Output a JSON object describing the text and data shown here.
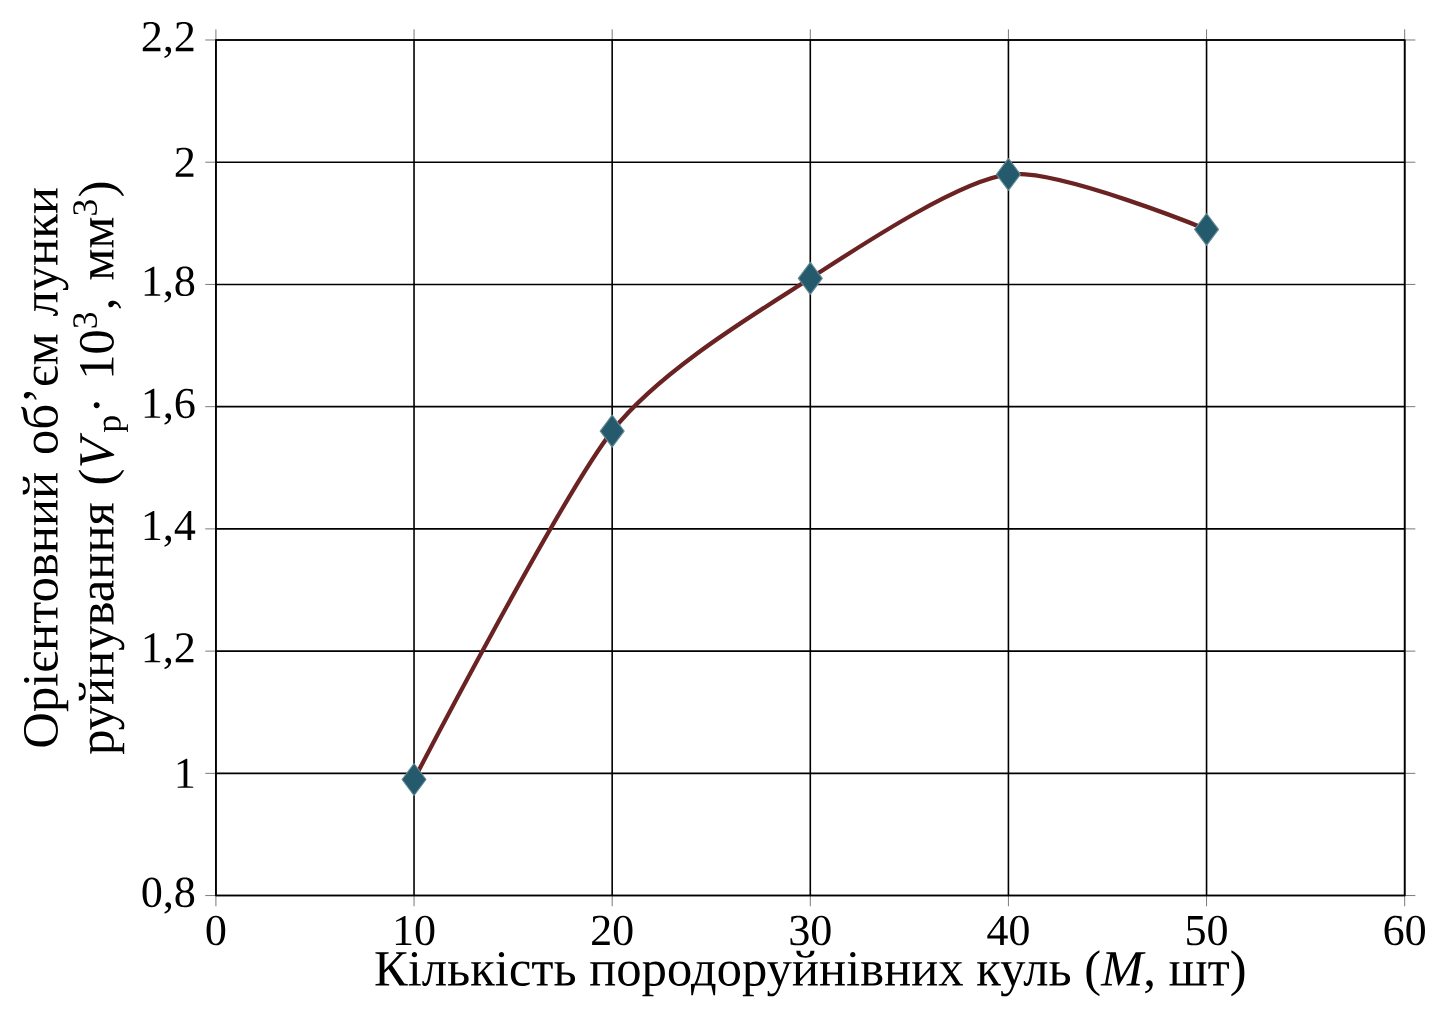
{
  "chart_data": {
    "type": "line",
    "xlabel": "Кількість породоруйнівних куль (*M*, шт)",
    "ylabel": "Орієнтовний об’єм лунки руйнування (*V*$_{p}$· 10$^{3}$, мм$^{3}$)",
    "x": [
      10,
      20,
      30,
      40,
      50
    ],
    "series": [
      {
        "color": "#6b2222",
        "values": [
          0.99,
          1.56,
          1.81,
          1.98,
          1.89
        ]
      }
    ],
    "marker": "diamond",
    "line_style": "solid",
    "grid": true,
    "xlim": [
      0,
      60
    ],
    "xticks": [
      0,
      10,
      20,
      30,
      40,
      50,
      60
    ],
    "ylim": [
      0.8,
      2.2
    ],
    "yticks": [
      {
        "value": 0.8,
        "label": "0,8"
      },
      {
        "value": 1,
        "label": "1"
      },
      {
        "value": 1.2,
        "label": "1,2"
      },
      {
        "value": 1.4,
        "label": "1,4"
      },
      {
        "value": 1.6,
        "label": "1,6"
      },
      {
        "value": 1.8,
        "label": "1,8"
      },
      {
        "value": 2,
        "label": "2"
      },
      {
        "value": 2.2,
        "label": "2,2"
      }
    ]
  }
}
